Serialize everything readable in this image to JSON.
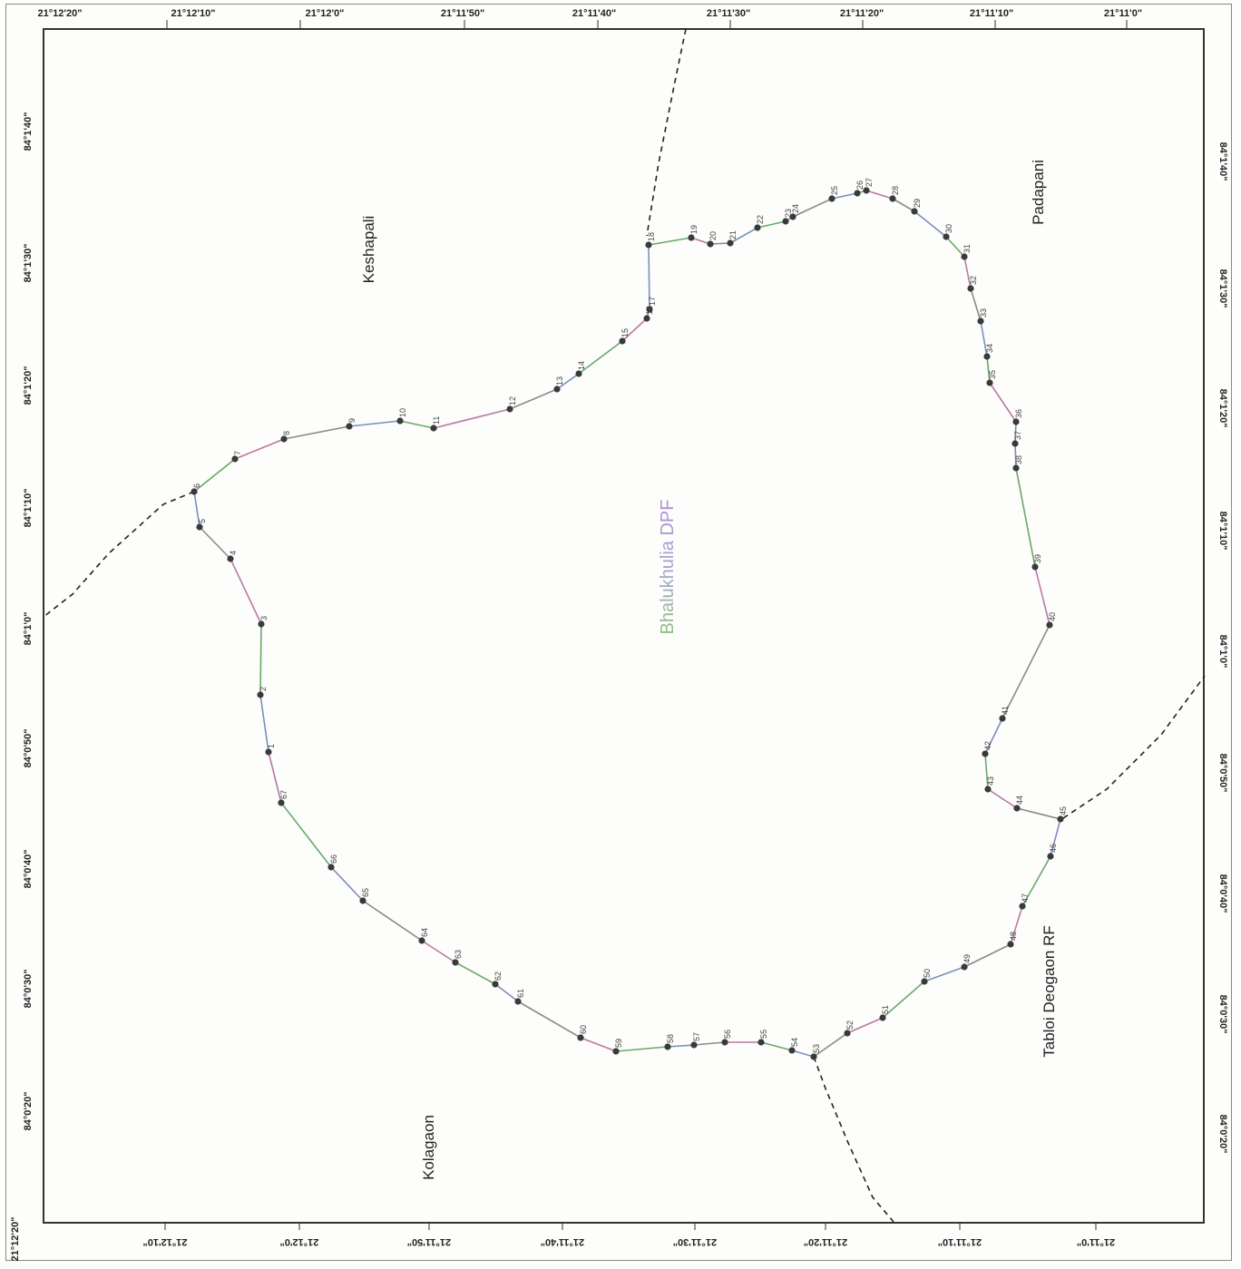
{
  "map": {
    "top_ticks": [
      "21°12'20\"",
      "21°12'10\"",
      "21°12'0\"",
      "21°11'50\"",
      "21°11'40\"",
      "21°11'30\"",
      "21°11'20\"",
      "21°11'10\"",
      "21°11'0\""
    ],
    "bottom_ticks": [
      "21°12'20\"",
      "21°12'10\"",
      "21°12'0\"",
      "21°11'50\"",
      "21°11'40\"",
      "21°11'30\"",
      "21°11'20\"",
      "21°11'10\"",
      "21°11'0\""
    ],
    "left_ticks": [
      "84°1'40\"",
      "84°1'30\"",
      "84°1'20\"",
      "84°1'10\"",
      "84°1'0\"",
      "84°0'50\"",
      "84°0'40\"",
      "84°0'30\"",
      "84°0'20\""
    ],
    "right_ticks": [
      "84°1'40\"",
      "84°1'30\"",
      "84°1'20\"",
      "84°1'10\"",
      "84°1'0\"",
      "84°0'50\"",
      "84°0'40\"",
      "84°0'30\"",
      "84°0'20\""
    ],
    "places": {
      "keshapali": "Keshapali",
      "padapani": "Padapani",
      "kolagaon": "Kolagaon",
      "tabloi": "Tabloi Deogaon RF"
    },
    "dpf_label": "Bhalukhulia DPF",
    "pillar_ids": [
      "1",
      "2",
      "3",
      "4",
      "5",
      "6",
      "7",
      "8",
      "9",
      "10",
      "11",
      "12",
      "13",
      "14",
      "15",
      "16",
      "17",
      "18",
      "19",
      "20",
      "21",
      "22",
      "23",
      "24",
      "25",
      "26",
      "27",
      "28",
      "29",
      "30",
      "31",
      "32",
      "33",
      "34",
      "35",
      "36",
      "37",
      "38",
      "39",
      "40",
      "41",
      "42",
      "43",
      "44",
      "45",
      "46",
      "47",
      "48",
      "49",
      "50",
      "51",
      "52",
      "53",
      "54",
      "55",
      "56",
      "57",
      "58",
      "59",
      "60",
      "61",
      "62",
      "63",
      "64",
      "65",
      "66",
      "67"
    ],
    "colors": {
      "boundary_segments": [
        "#7a8fbf",
        "#6aa86a",
        "#b77aa8",
        "#8a8a8a"
      ],
      "pillar": "#3a3a3a",
      "dashed": "#222222",
      "dpf_text": [
        "#8fc07f",
        "#b58cd8"
      ]
    }
  }
}
